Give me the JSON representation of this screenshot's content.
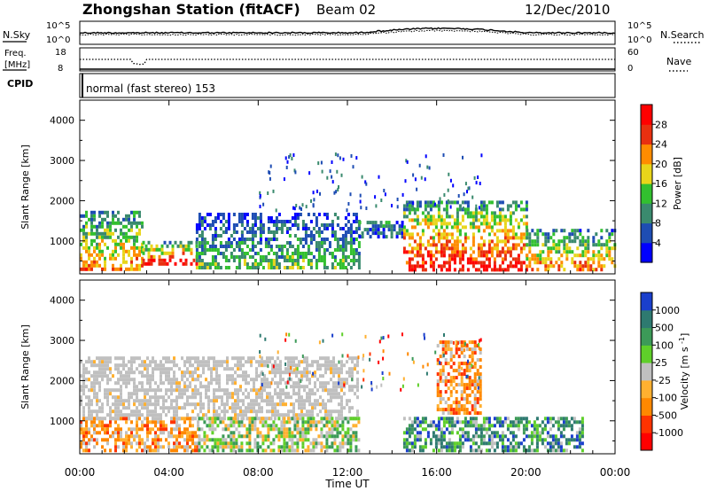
{
  "header": {
    "station": "Zhongshan Station (fitACF)",
    "beam": "Beam 02",
    "date": "12/Dec/2010"
  },
  "noise_panel": {
    "left_label": "N.Sky",
    "right_label": "N.Search",
    "left_ticks": [
      "10^5",
      "10^0"
    ],
    "right_ticks": [
      "10^5",
      "10^0"
    ]
  },
  "freq_panel": {
    "left_label_1": "Freq.",
    "left_label_2": "[MHz]",
    "right_label": "Nave",
    "left_ticks": [
      "18",
      "8"
    ],
    "right_ticks": [
      "60",
      "0"
    ]
  },
  "cpid_panel": {
    "label": "CPID",
    "mode_text": "normal (fast stereo) 153"
  },
  "x_axis": {
    "ticks": [
      "00:00",
      "04:00",
      "08:00",
      "12:00",
      "16:00",
      "20:00",
      "00:00"
    ],
    "label": "Time UT"
  },
  "chart_data": [
    {
      "type": "heatmap",
      "name": "power",
      "ylabel": "Slant Range [km]",
      "ylim": [
        180,
        4500
      ],
      "yticks": [
        "1000",
        "2000",
        "3000",
        "4000"
      ],
      "xlim": [
        0,
        24
      ],
      "colorbar": {
        "label": "Power [dB]",
        "range": [
          0,
          30
        ],
        "tick_labels": [
          "4",
          "8",
          "12",
          "16",
          "20",
          "24",
          "28"
        ],
        "colors": [
          "#0000ff",
          "#1e4db3",
          "#3a8a6e",
          "#32c02f",
          "#e8d51a",
          "#ff8c00",
          "#e83010",
          "#ff0000"
        ]
      },
      "echo_regions": [
        {
          "t0": 0.0,
          "t1": 2.8,
          "r0": 300,
          "r1": 1750,
          "level": "medium-high"
        },
        {
          "t0": 2.8,
          "t1": 5.2,
          "r0": 450,
          "r1": 1000,
          "level": "high"
        },
        {
          "t0": 5.2,
          "t1": 12.5,
          "r0": 300,
          "r1": 1700,
          "level": "low-medium"
        },
        {
          "t0": 12.5,
          "t1": 14.5,
          "r0": 1100,
          "r1": 1500,
          "level": "low"
        },
        {
          "t0": 14.5,
          "t1": 20.0,
          "r0": 300,
          "r1": 2000,
          "level": "high"
        },
        {
          "t0": 20.0,
          "t1": 24.0,
          "r0": 300,
          "r1": 1300,
          "level": "medium-high"
        }
      ]
    },
    {
      "type": "heatmap",
      "name": "velocity",
      "ylabel": "Slant Range [km]",
      "ylim": [
        180,
        4500
      ],
      "yticks": [
        "1000",
        "2000",
        "3000",
        "4000"
      ],
      "xlim": [
        0,
        24
      ],
      "colorbar": {
        "label": "Velocity [m s^-1]",
        "range": [
          -1200,
          1200
        ],
        "tick_labels": [
          "1000",
          "500",
          "100",
          "25",
          "-25",
          "-100",
          "-500",
          "-1000"
        ],
        "colors": [
          "#1a3fcc",
          "#2e7a70",
          "#3c9a58",
          "#5fcf2a",
          "#c0c0c0",
          "#ffb030",
          "#ff8800",
          "#ff3300",
          "#ff0000"
        ]
      },
      "echo_regions": [
        {
          "t0": 0.0,
          "t1": 5.3,
          "r0": 300,
          "r1": 1100,
          "level": "away (-100 to -500)"
        },
        {
          "t0": 0.0,
          "t1": 12.5,
          "r0": 1100,
          "r1": 2600,
          "level": "ground scatter (±25)"
        },
        {
          "t0": 5.3,
          "t1": 12.5,
          "r0": 300,
          "r1": 1100,
          "level": "mixed"
        },
        {
          "t0": 14.5,
          "t1": 22.5,
          "r0": 300,
          "r1": 1100,
          "level": "toward (100 to 500)"
        },
        {
          "t0": 16.0,
          "t1": 18.0,
          "r0": 1200,
          "r1": 3000,
          "level": "away (-100 to -500)"
        }
      ]
    }
  ]
}
